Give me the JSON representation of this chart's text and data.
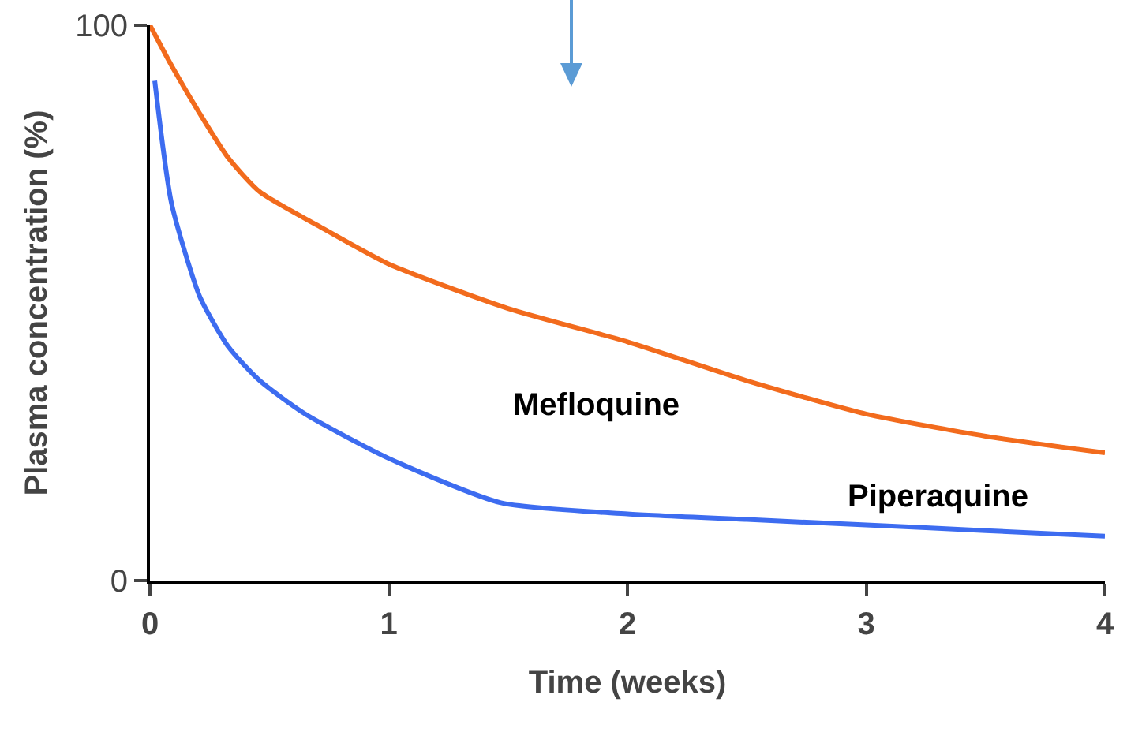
{
  "chart_data": {
    "type": "line",
    "xlabel": "Time (weeks)",
    "ylabel": "Plasma concentration (%)",
    "xlim": [
      0,
      4
    ],
    "xticks": [
      0,
      1,
      2,
      3,
      4
    ],
    "ylim": [
      0,
      100
    ],
    "yticks": [
      0,
      100
    ],
    "grid": false,
    "legend": false,
    "marker": "none",
    "line_style": "solid",
    "series": [
      {
        "name": "Mefloquine",
        "color": "#f26b1d",
        "x": [
          0,
          0.1,
          0.21,
          0.33,
          0.46,
          0.7,
          1,
          1.5,
          2,
          2.5,
          3,
          3.5,
          4
        ],
        "values": [
          100,
          92,
          84,
          76,
          70,
          64,
          57,
          49,
          43,
          36,
          30,
          26,
          23
        ]
      },
      {
        "name": "Piperaquine",
        "color": "#3d6cf0",
        "x": [
          0.02,
          0.09,
          0.21,
          0.33,
          0.46,
          0.65,
          1,
          1.47,
          2,
          2.5,
          3,
          3.5,
          4
        ],
        "values": [
          90,
          68,
          51,
          42,
          36,
          30,
          22,
          14,
          12,
          11,
          10,
          9,
          8
        ]
      }
    ]
  }
}
